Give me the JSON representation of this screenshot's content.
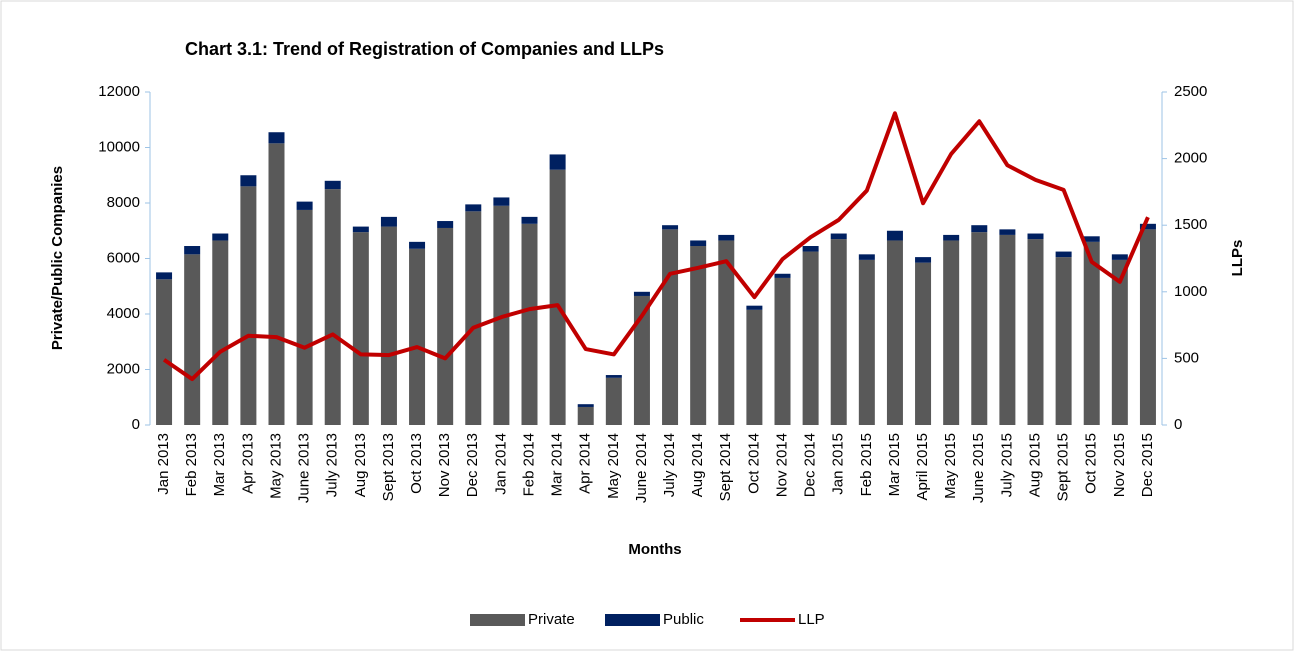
{
  "chart_data": {
    "type": "bar",
    "stacked": true,
    "title": "Chart 3.1: Trend of Registration of Companies and LLPs",
    "x_label": "Months",
    "y_label": "Private/Public Companies",
    "y2_label": "LLPs",
    "categories": [
      "Jan 2013",
      "Feb 2013",
      "Mar 2013",
      "Apr 2013",
      "May 2013",
      "June 2013",
      "July 2013",
      "Aug 2013",
      "Sept 2013",
      "Oct 2013",
      "Nov 2013",
      "Dec 2013",
      "Jan 2014",
      "Feb 2014",
      "Mar 2014",
      "Apr 2014",
      "May 2014",
      "June 2014",
      "July 2014",
      "Aug 2014",
      "Sept 2014",
      "Oct 2014",
      "Nov 2014",
      "Dec 2014",
      "Jan 2015",
      "Feb 2015",
      "Mar 2015",
      "April 2015",
      "May 2015",
      "June 2015",
      "July 2015",
      "Aug 2015",
      "Sept 2015",
      "Oct 2015",
      "Nov 2015",
      "Dec 2015"
    ],
    "series": [
      {
        "name": "Private",
        "color": "#595959",
        "values": [
          5250,
          6150,
          6650,
          8600,
          10150,
          7750,
          8500,
          6950,
          7150,
          6350,
          7100,
          7700,
          7900,
          7250,
          9200,
          650,
          1700,
          4650,
          7050,
          6450,
          6650,
          4150,
          5300,
          6250,
          6700,
          5950,
          6650,
          5850,
          6650,
          6950,
          6850,
          6700,
          6050,
          6600,
          5950,
          7050
        ]
      },
      {
        "name": "Public",
        "color": "#002060",
        "values": [
          250,
          300,
          250,
          400,
          400,
          300,
          300,
          200,
          350,
          250,
          250,
          250,
          300,
          250,
          550,
          100,
          100,
          150,
          150,
          200,
          200,
          150,
          150,
          200,
          200,
          200,
          350,
          200,
          200,
          250,
          200,
          200,
          200,
          200,
          200,
          200
        ]
      },
      {
        "name": "LLP",
        "color": "#c00000",
        "type": "line",
        "axis": "y2",
        "values": [
          490,
          345,
          550,
          670,
          660,
          580,
          680,
          530,
          525,
          585,
          500,
          730,
          810,
          870,
          900,
          570,
          530,
          820,
          1135,
          1180,
          1230,
          960,
          1245,
          1410,
          1540,
          1760,
          2340,
          1665,
          2035,
          2280,
          1950,
          1840,
          1765,
          1225,
          1075,
          1560
        ]
      }
    ],
    "ylim": [
      0,
      12000
    ],
    "yticks": [
      0,
      2000,
      4000,
      6000,
      8000,
      10000,
      12000
    ],
    "y2lim": [
      0,
      2500
    ],
    "y2ticks": [
      0,
      500,
      1000,
      1500,
      2000,
      2500
    ],
    "legend": "bottom"
  }
}
